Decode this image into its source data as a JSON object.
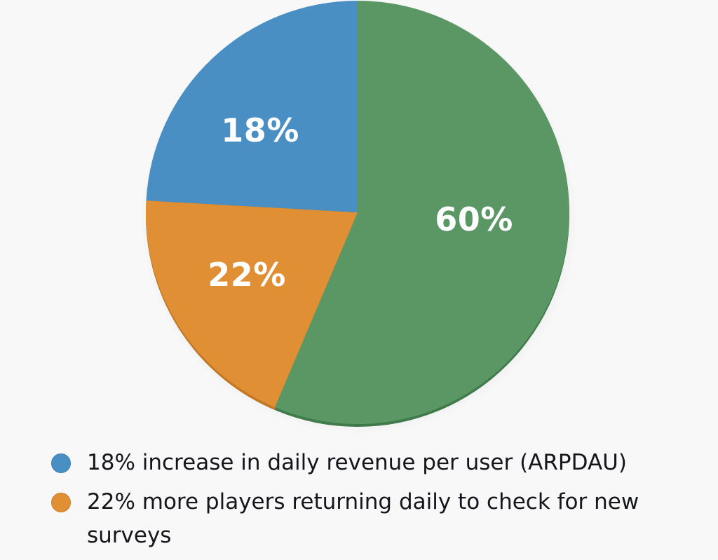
{
  "chart_data": {
    "type": "pie",
    "title": "",
    "slices": [
      {
        "label": "18%",
        "value": 18,
        "color": "#4a8fc3",
        "legend": "18% increase in daily revenue per user (ARPDAU)"
      },
      {
        "label": "22%",
        "value": 22,
        "color": "#e08f35",
        "legend": "22% more players returning daily to check for new surveys"
      },
      {
        "label": "60%",
        "value": 60,
        "color": "#5a9765",
        "legend": ""
      }
    ],
    "legend_position": "bottom"
  },
  "labels": {
    "blue": "18%",
    "orange": "22%",
    "green": "60%"
  },
  "legend": {
    "items": [
      {
        "text": "18% increase in daily revenue per user (ARPDAU)",
        "color": "#4a8fc3"
      },
      {
        "text": "22% more players returning daily to check for new surveys",
        "color": "#e08f35"
      }
    ]
  }
}
